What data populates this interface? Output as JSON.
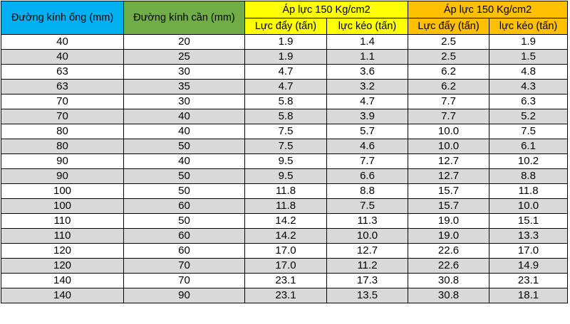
{
  "headers": {
    "pipe_diameter": "Đường kính ống (mm)",
    "rod_diameter": "Đường kính cần (mm)",
    "group1_title": "Áp lực 150 Kg/cm2",
    "group2_title": "Áp lực 150 Kg/cm2",
    "push_force": "Lực đẩy (tấn)",
    "pull_force": "lực kéo (tấn)"
  },
  "colors": {
    "pipe_header": "#00B0F0",
    "rod_header": "#70AD47",
    "group1_header": "#FFFF00",
    "group2_header": "#FFC000",
    "stripe": "#D9D9D9"
  },
  "rows": [
    [
      "40",
      "20",
      "1.9",
      "1.4",
      "2.5",
      "1.9"
    ],
    [
      "40",
      "25",
      "1.9",
      "1.1",
      "2.5",
      "1.5"
    ],
    [
      "63",
      "30",
      "4.7",
      "3.6",
      "6.2",
      "4.8"
    ],
    [
      "63",
      "35",
      "4.7",
      "3.2",
      "6.2",
      "4.3"
    ],
    [
      "70",
      "30",
      "5.8",
      "4.7",
      "7.7",
      "6.3"
    ],
    [
      "70",
      "40",
      "5.8",
      "3.9",
      "7.7",
      "5.2"
    ],
    [
      "80",
      "40",
      "7.5",
      "5.7",
      "10.0",
      "7.5"
    ],
    [
      "80",
      "50",
      "7.5",
      "4.6",
      "10.0",
      "6.1"
    ],
    [
      "90",
      "40",
      "9.5",
      "7.7",
      "12.7",
      "10.2"
    ],
    [
      "90",
      "50",
      "9.5",
      "6.6",
      "12.7",
      "8.8"
    ],
    [
      "100",
      "50",
      "11.8",
      "8.8",
      "15.7",
      "11.8"
    ],
    [
      "100",
      "60",
      "11.8",
      "7.5",
      "15.7",
      "10.0"
    ],
    [
      "110",
      "50",
      "14.2",
      "11.3",
      "19.0",
      "15.1"
    ],
    [
      "110",
      "60",
      "14.2",
      "10.0",
      "19.0",
      "13.3"
    ],
    [
      "120",
      "60",
      "17.0",
      "12.7",
      "22.6",
      "17.0"
    ],
    [
      "120",
      "70",
      "17.0",
      "11.2",
      "22.6",
      "14.9"
    ],
    [
      "140",
      "70",
      "23.1",
      "17.3",
      "30.8",
      "23.1"
    ],
    [
      "140",
      "90",
      "23.1",
      "13.5",
      "30.8",
      "18.1"
    ]
  ]
}
